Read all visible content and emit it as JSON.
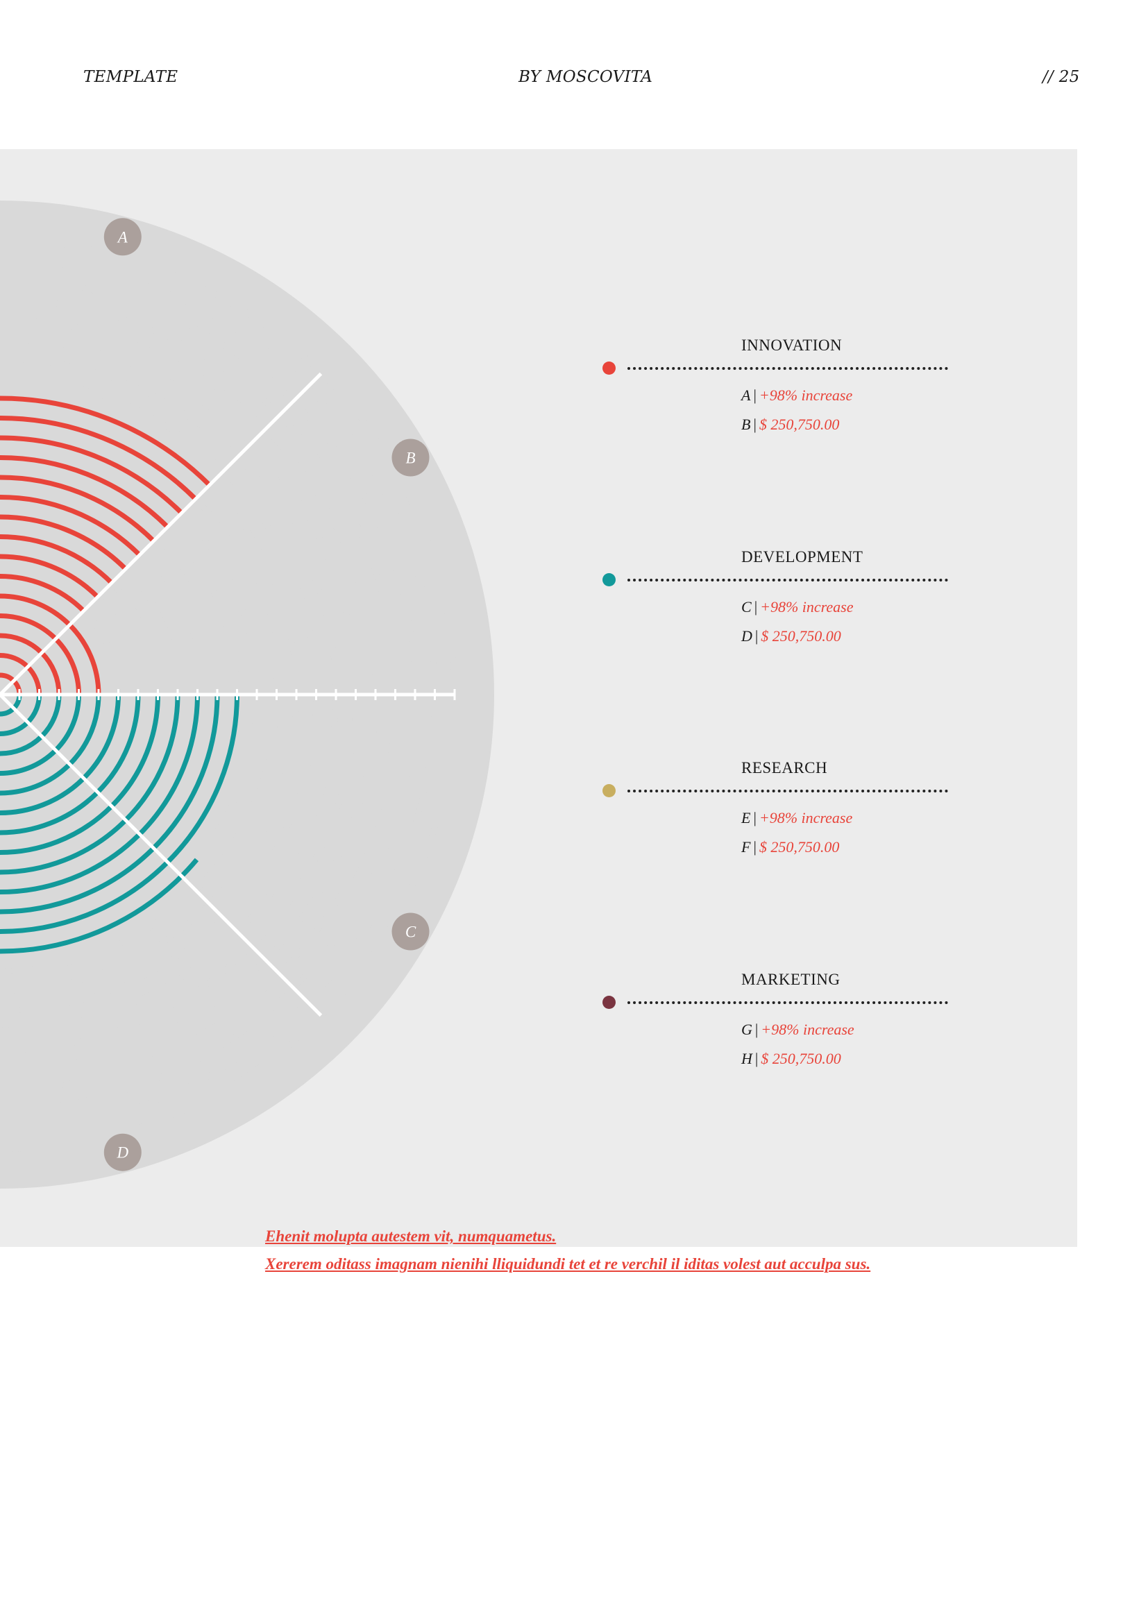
{
  "header": {
    "left": "TEMPLATE",
    "center": "BY MOSCOVITA",
    "right": "// 25"
  },
  "colors": {
    "panel": "#ececec",
    "outer_ring": "#d9d9d9",
    "track": "#d9d9d9",
    "innovation": "#e8443a",
    "development": "#12999a",
    "research": "#c8ae5f",
    "marketing": "#7a3440",
    "marker": "#aba09c"
  },
  "chart_data": {
    "type": "radial-arc",
    "markers": [
      "A",
      "B",
      "C",
      "D"
    ],
    "series": [
      {
        "color": "#e8443a"
      },
      {
        "color": "#12999a"
      }
    ]
  },
  "legend": [
    {
      "title": "INNOVATION",
      "color": "#e8443a",
      "rows": [
        {
          "key": "A",
          "value": "+98% increase"
        },
        {
          "key": "B",
          "value": "$ 250,750.00"
        }
      ]
    },
    {
      "title": "DEVELOPMENT",
      "color": "#12999a",
      "rows": [
        {
          "key": "C",
          "value": "+98% increase"
        },
        {
          "key": "D",
          "value": "$ 250,750.00"
        }
      ]
    },
    {
      "title": "RESEARCH",
      "color": "#c8ae5f",
      "rows": [
        {
          "key": "E",
          "value": "+98% increase"
        },
        {
          "key": "F",
          "value": "$ 250,750.00"
        }
      ]
    },
    {
      "title": "MARKETING",
      "color": "#7a3440",
      "rows": [
        {
          "key": "G",
          "value": "+98% increase"
        },
        {
          "key": "H",
          "value": "$ 250,750.00"
        }
      ]
    }
  ],
  "note": {
    "line1": "Ehenit molupta autestem vit, numquametus.",
    "line2": "Xererem oditass imagnam nienihi lliquidundi tet et re verchil il iditas volest aut acculpa sus."
  }
}
